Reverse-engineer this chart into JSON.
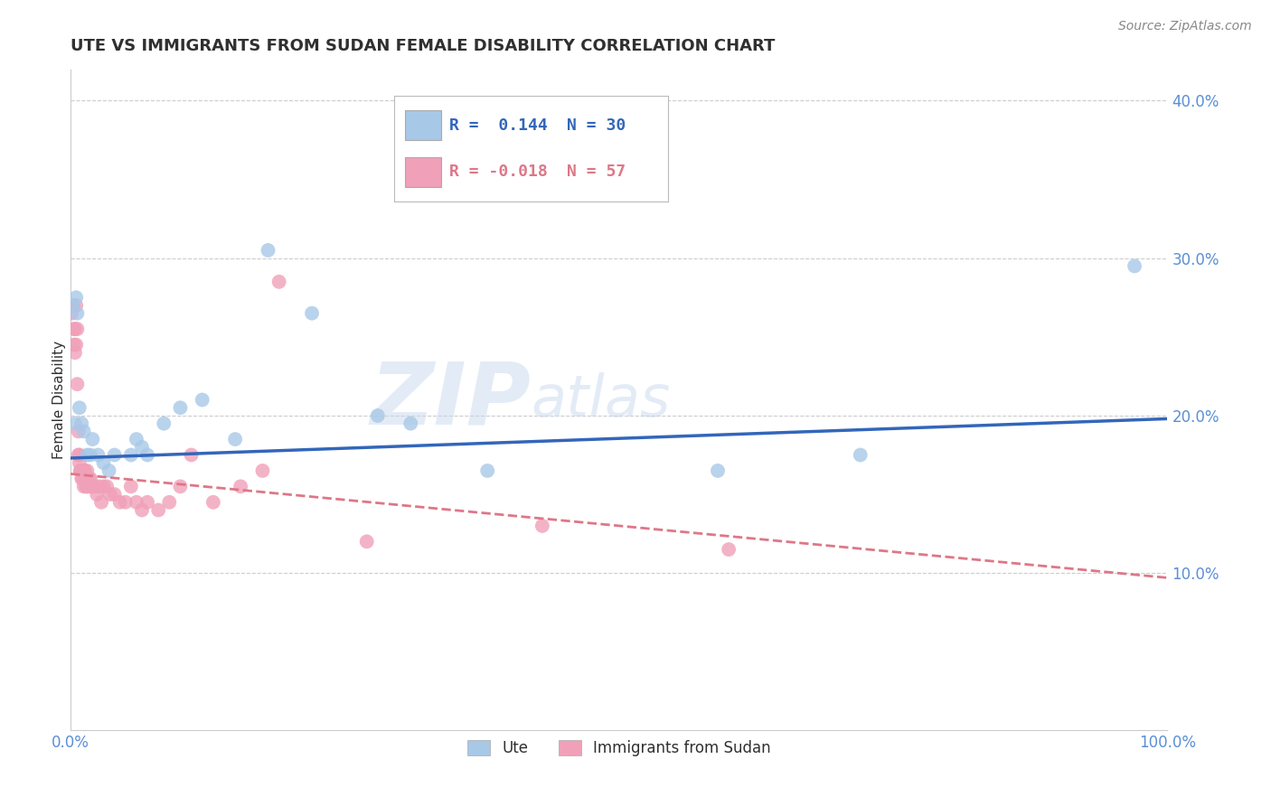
{
  "title": "UTE VS IMMIGRANTS FROM SUDAN FEMALE DISABILITY CORRELATION CHART",
  "source": "Source: ZipAtlas.com",
  "xlabel": "",
  "ylabel": "Female Disability",
  "xlim": [
    0.0,
    1.0
  ],
  "ylim": [
    0.0,
    0.42
  ],
  "yticks": [
    0.1,
    0.2,
    0.3,
    0.4
  ],
  "ytick_labels": [
    "10.0%",
    "20.0%",
    "30.0%",
    "40.0%"
  ],
  "xtick_labels": [
    "0.0%",
    "100.0%"
  ],
  "legend_r_ute": "R =  0.144",
  "legend_n_ute": "N = 30",
  "legend_r_sudan": "R = -0.018",
  "legend_n_sudan": "N = 57",
  "ute_color": "#a8c8e8",
  "sudan_color": "#f0a0b8",
  "ute_line_color": "#3366bb",
  "sudan_line_color": "#dd7788",
  "ute_points_x": [
    0.002,
    0.004,
    0.005,
    0.006,
    0.008,
    0.01,
    0.012,
    0.015,
    0.018,
    0.02,
    0.025,
    0.03,
    0.035,
    0.04,
    0.055,
    0.06,
    0.065,
    0.07,
    0.085,
    0.1,
    0.12,
    0.15,
    0.18,
    0.22,
    0.28,
    0.31,
    0.38,
    0.59,
    0.72,
    0.97
  ],
  "ute_points_y": [
    0.27,
    0.195,
    0.275,
    0.265,
    0.205,
    0.195,
    0.19,
    0.175,
    0.175,
    0.185,
    0.175,
    0.17,
    0.165,
    0.175,
    0.175,
    0.185,
    0.18,
    0.175,
    0.195,
    0.205,
    0.21,
    0.185,
    0.305,
    0.265,
    0.2,
    0.195,
    0.165,
    0.165,
    0.175,
    0.295
  ],
  "sudan_points_x": [
    0.001,
    0.002,
    0.003,
    0.003,
    0.004,
    0.004,
    0.005,
    0.005,
    0.006,
    0.006,
    0.007,
    0.007,
    0.008,
    0.008,
    0.009,
    0.009,
    0.01,
    0.01,
    0.011,
    0.011,
    0.012,
    0.012,
    0.013,
    0.013,
    0.014,
    0.015,
    0.015,
    0.016,
    0.017,
    0.018,
    0.019,
    0.02,
    0.022,
    0.024,
    0.026,
    0.028,
    0.03,
    0.033,
    0.036,
    0.04,
    0.045,
    0.05,
    0.055,
    0.06,
    0.065,
    0.07,
    0.08,
    0.09,
    0.1,
    0.11,
    0.13,
    0.155,
    0.175,
    0.19,
    0.27,
    0.43,
    0.6
  ],
  "sudan_points_y": [
    0.265,
    0.27,
    0.245,
    0.255,
    0.24,
    0.255,
    0.27,
    0.245,
    0.22,
    0.255,
    0.19,
    0.175,
    0.175,
    0.17,
    0.165,
    0.165,
    0.165,
    0.16,
    0.16,
    0.165,
    0.165,
    0.155,
    0.16,
    0.165,
    0.155,
    0.155,
    0.165,
    0.155,
    0.16,
    0.16,
    0.155,
    0.155,
    0.155,
    0.15,
    0.155,
    0.145,
    0.155,
    0.155,
    0.15,
    0.15,
    0.145,
    0.145,
    0.155,
    0.145,
    0.14,
    0.145,
    0.14,
    0.145,
    0.155,
    0.175,
    0.145,
    0.155,
    0.165,
    0.285,
    0.12,
    0.13,
    0.115
  ],
  "watermark_zip": "ZIP",
  "watermark_atlas": "atlas",
  "background_color": "#ffffff",
  "grid_color": "#cccccc",
  "title_color": "#303030",
  "axis_label_color": "#303030",
  "tick_label_color": "#5b8fd4",
  "title_fontsize": 13,
  "axis_label_fontsize": 11,
  "tick_fontsize": 12,
  "legend_fontsize": 13,
  "source_fontsize": 10,
  "ute_regression_x0": 0.0,
  "ute_regression_y0": 0.173,
  "ute_regression_x1": 1.0,
  "ute_regression_y1": 0.198,
  "sudan_regression_x0": 0.0,
  "sudan_regression_y0": 0.163,
  "sudan_regression_x1": 1.0,
  "sudan_regression_y1": 0.097
}
